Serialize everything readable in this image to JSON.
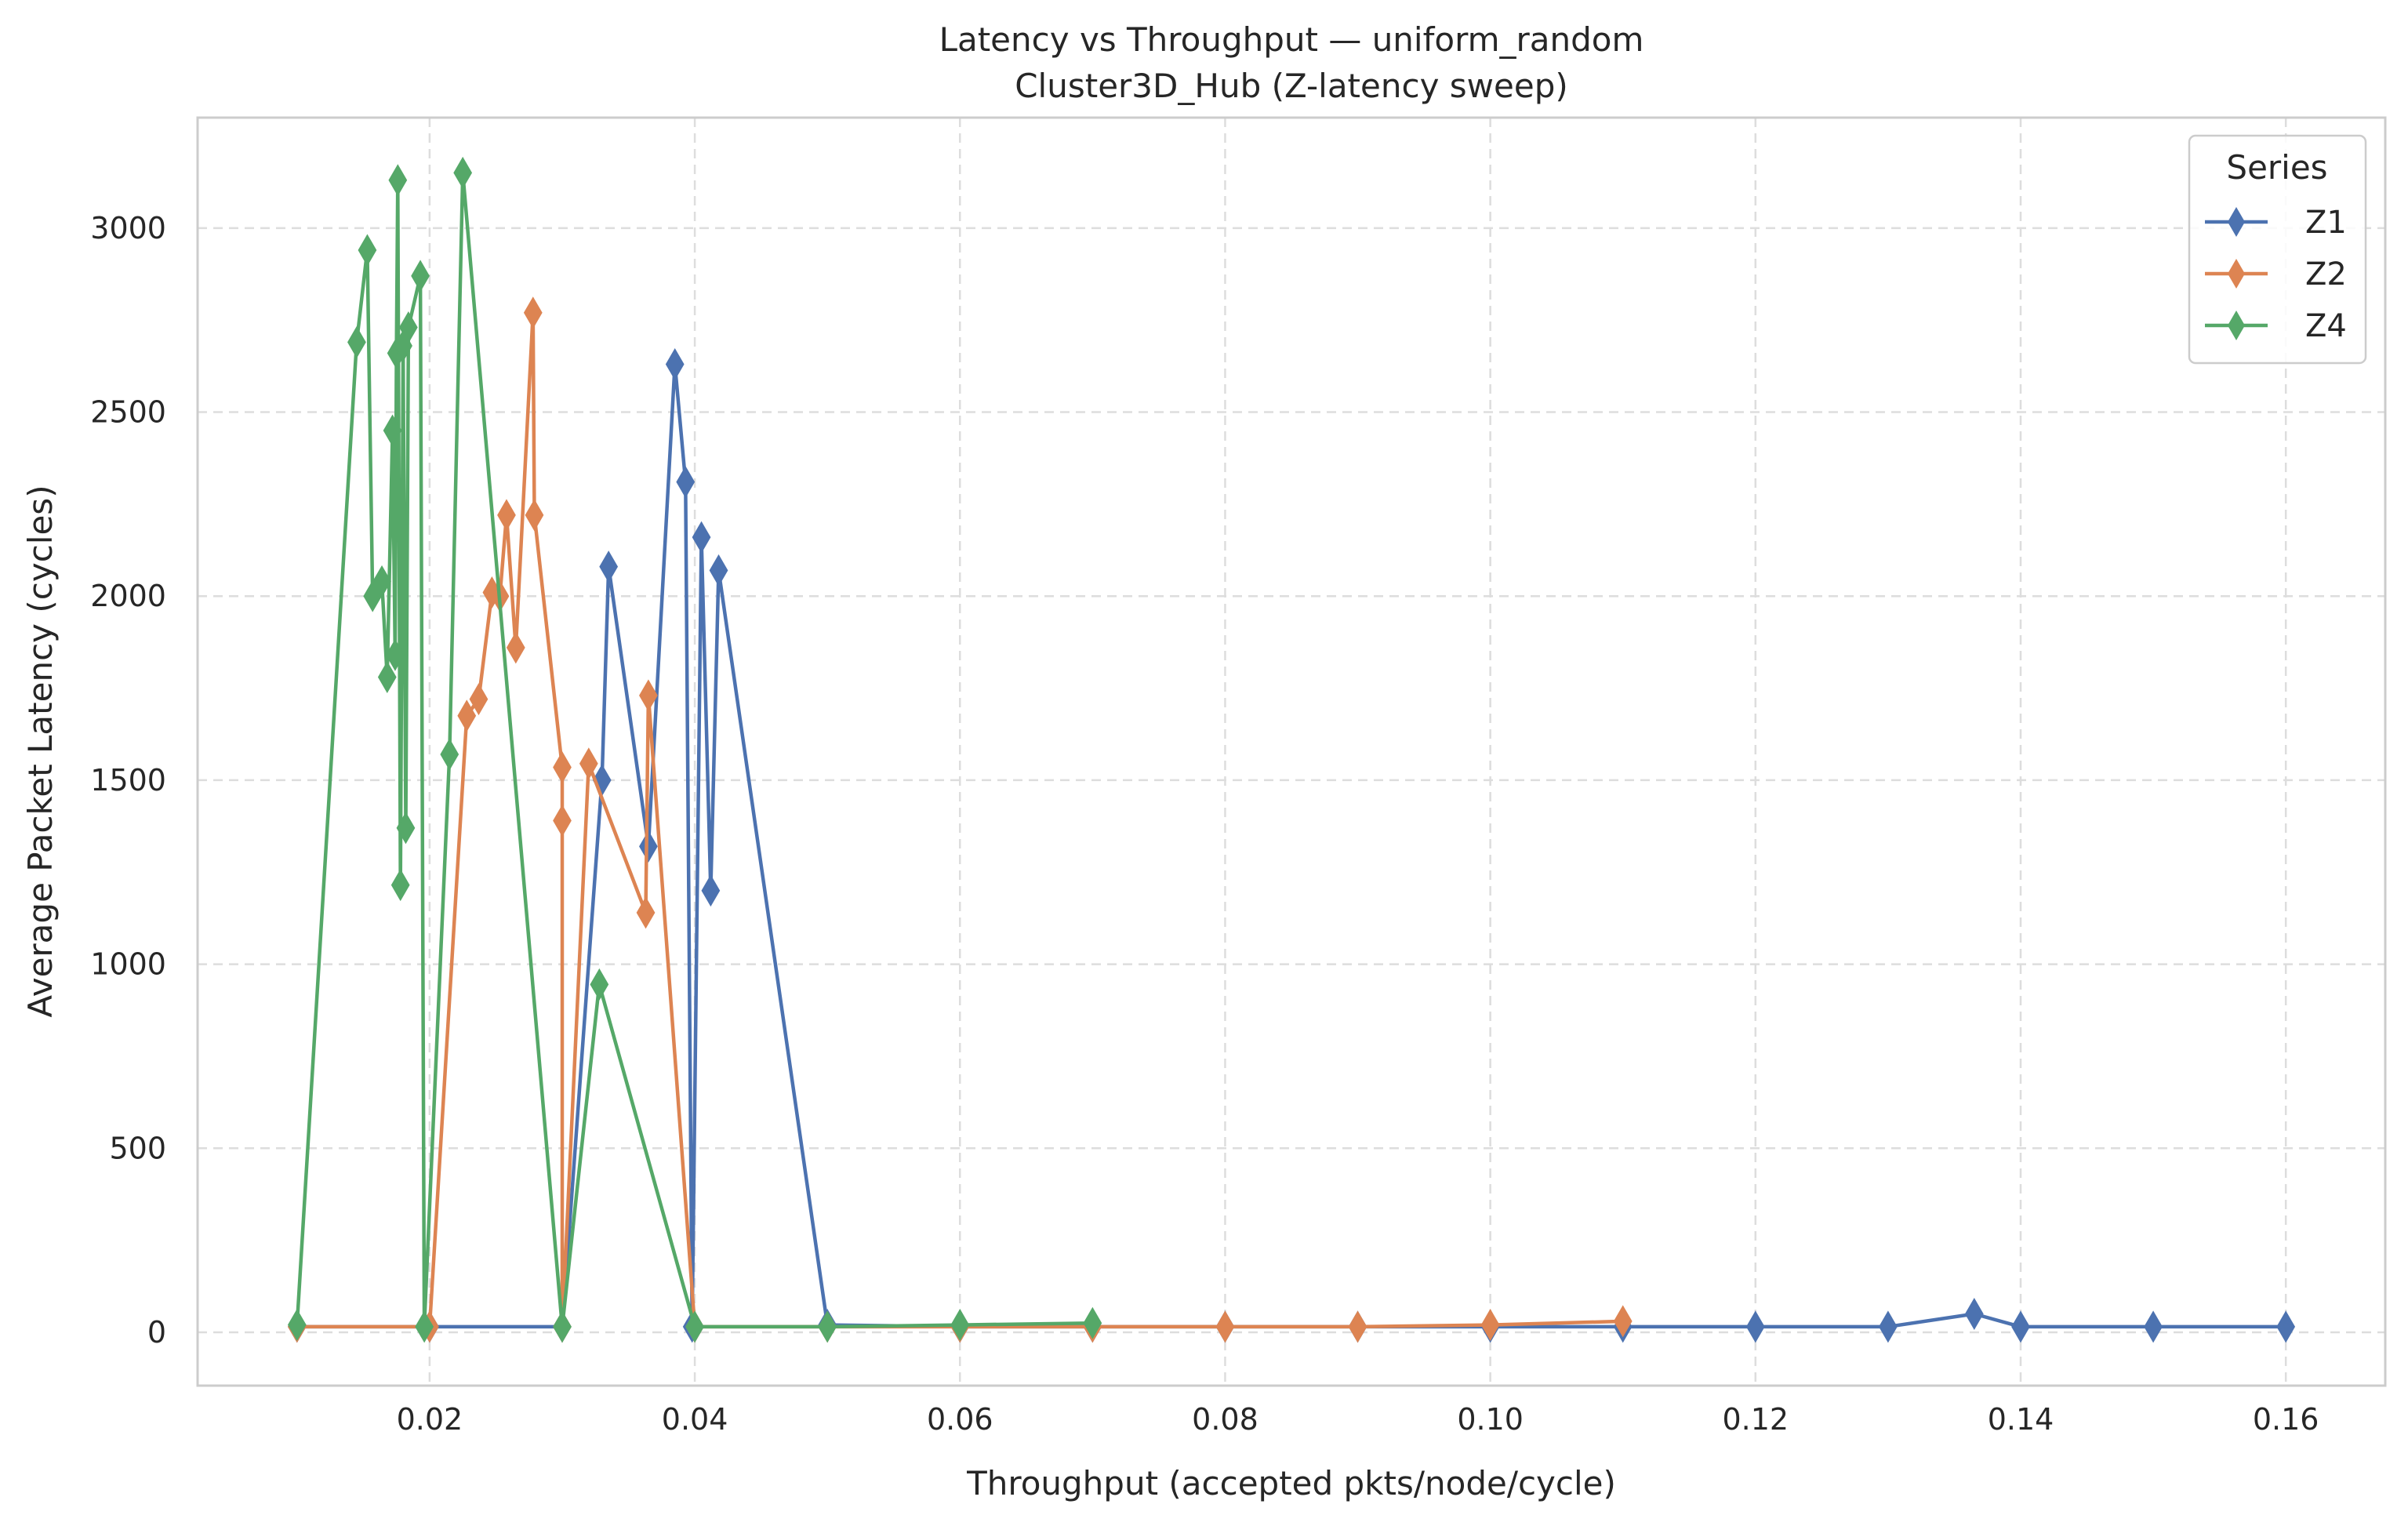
{
  "chart_data": {
    "type": "line",
    "title": "Latency vs Throughput — uniform_random",
    "subtitle": "Cluster3D_Hub (Z-latency sweep)",
    "xlabel": "Throughput (accepted pkts/node/cycle)",
    "ylabel": "Average Packet Latency (cycles)",
    "xlim": [
      0.0025,
      0.1675
    ],
    "ylim": [
      -145,
      3300
    ],
    "xticks": [
      0.02,
      0.04,
      0.06,
      0.08,
      0.1,
      0.12,
      0.14,
      0.16
    ],
    "xtick_labels": [
      "0.02",
      "0.04",
      "0.06",
      "0.08",
      "0.10",
      "0.12",
      "0.14",
      "0.16"
    ],
    "yticks": [
      0,
      500,
      1000,
      1500,
      2000,
      2500,
      3000
    ],
    "ytick_labels": [
      "0",
      "500",
      "1000",
      "1500",
      "2000",
      "2500",
      "3000"
    ],
    "grid": true,
    "marker": "diamond",
    "legend": {
      "title": "Series",
      "position": "top-right"
    },
    "series": [
      {
        "name": "Z1",
        "color": "#4c72b0",
        "points": [
          [
            0.01,
            15
          ],
          [
            0.02,
            15
          ],
          [
            0.03,
            15
          ],
          [
            0.033,
            1500
          ],
          [
            0.0335,
            2080
          ],
          [
            0.0365,
            1320
          ],
          [
            0.0385,
            2630
          ],
          [
            0.0393,
            2310
          ],
          [
            0.0398,
            15
          ],
          [
            0.0405,
            2160
          ],
          [
            0.0412,
            1200
          ],
          [
            0.0418,
            2070
          ],
          [
            0.05,
            20
          ],
          [
            0.06,
            15
          ],
          [
            0.07,
            15
          ],
          [
            0.08,
            15
          ],
          [
            0.09,
            15
          ],
          [
            0.1,
            15
          ],
          [
            0.11,
            15
          ],
          [
            0.12,
            15
          ],
          [
            0.13,
            15
          ],
          [
            0.1365,
            50
          ],
          [
            0.14,
            15
          ],
          [
            0.15,
            15
          ],
          [
            0.16,
            15
          ]
        ]
      },
      {
        "name": "Z2",
        "color": "#dd8452",
        "points": [
          [
            0.01,
            15
          ],
          [
            0.02,
            15
          ],
          [
            0.0228,
            1675
          ],
          [
            0.0237,
            1720
          ],
          [
            0.0247,
            2010
          ],
          [
            0.0253,
            2000
          ],
          [
            0.0258,
            2220
          ],
          [
            0.0265,
            1860
          ],
          [
            0.0278,
            2770
          ],
          [
            0.0279,
            2220
          ],
          [
            0.03,
            1535
          ],
          [
            0.03,
            1390
          ],
          [
            0.03,
            15
          ],
          [
            0.032,
            1545
          ],
          [
            0.0363,
            1140
          ],
          [
            0.0365,
            1730
          ],
          [
            0.04,
            15
          ],
          [
            0.05,
            15
          ],
          [
            0.06,
            15
          ],
          [
            0.07,
            15
          ],
          [
            0.08,
            15
          ],
          [
            0.09,
            15
          ],
          [
            0.1,
            20
          ],
          [
            0.11,
            30
          ]
        ]
      },
      {
        "name": "Z4",
        "color": "#55a868",
        "points": [
          [
            0.01,
            20
          ],
          [
            0.0145,
            2690
          ],
          [
            0.0153,
            2940
          ],
          [
            0.0157,
            2000
          ],
          [
            0.0164,
            2040
          ],
          [
            0.0168,
            1780
          ],
          [
            0.0172,
            2450
          ],
          [
            0.0174,
            1840
          ],
          [
            0.0175,
            2660
          ],
          [
            0.0176,
            3130
          ],
          [
            0.0178,
            1215
          ],
          [
            0.018,
            2680
          ],
          [
            0.0182,
            1370
          ],
          [
            0.0184,
            2730
          ],
          [
            0.0193,
            2870
          ],
          [
            0.0196,
            15
          ],
          [
            0.0215,
            1570
          ],
          [
            0.0225,
            3150
          ],
          [
            0.03,
            15
          ],
          [
            0.0328,
            945
          ],
          [
            0.04,
            15
          ],
          [
            0.05,
            15
          ],
          [
            0.06,
            20
          ],
          [
            0.07,
            25
          ]
        ]
      }
    ]
  }
}
